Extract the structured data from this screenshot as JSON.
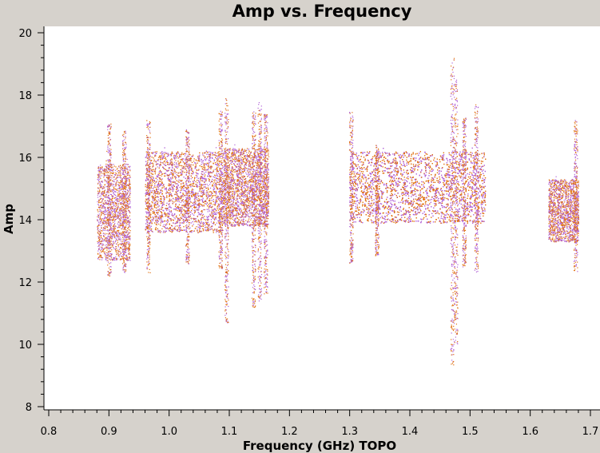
{
  "chart_data": {
    "type": "scatter",
    "title": "Amp vs. Frequency",
    "xlabel": "Frequency (GHz) TOPO",
    "ylabel": "Amp",
    "xlim": [
      0.8,
      1.7
    ],
    "ylim": [
      8,
      20
    ],
    "x_ticks": [
      "0.8",
      "0.9",
      "1.0",
      "1.1",
      "1.2",
      "1.3",
      "1.4",
      "1.5",
      "1.6",
      "1.7"
    ],
    "y_ticks": [
      "8",
      "10",
      "12",
      "14",
      "16",
      "18",
      "20"
    ],
    "grid": false,
    "colors": {
      "series_a": "#b061d6",
      "series_b": "#e07010"
    },
    "clusters": [
      {
        "x_range": [
          0.88,
          0.935
        ],
        "amp_range": [
          12.7,
          15.8
        ],
        "spikes": [
          {
            "x": 0.9,
            "min": 12.2,
            "max": 17.1
          },
          {
            "x": 0.925,
            "min": 12.3,
            "max": 16.9
          }
        ]
      },
      {
        "x_range": [
          0.96,
          1.09
        ],
        "amp_range": [
          13.6,
          16.2
        ],
        "spikes": [
          {
            "x": 0.965,
            "min": 12.3,
            "max": 17.2
          },
          {
            "x": 1.03,
            "min": 12.6,
            "max": 16.9
          },
          {
            "x": 1.085,
            "min": 12.4,
            "max": 17.5
          },
          {
            "x": 1.095,
            "min": 10.7,
            "max": 17.9
          }
        ]
      },
      {
        "x_range": [
          1.09,
          1.165
        ],
        "amp_range": [
          13.8,
          16.3
        ],
        "spikes": [
          {
            "x": 1.14,
            "min": 11.2,
            "max": 17.5
          },
          {
            "x": 1.15,
            "min": 11.4,
            "max": 17.8
          },
          {
            "x": 1.16,
            "min": 11.6,
            "max": 17.4
          }
        ]
      },
      {
        "x_range": [
          1.3,
          1.525
        ],
        "amp_range": [
          13.9,
          16.2
        ],
        "spikes": [
          {
            "x": 1.302,
            "min": 12.6,
            "max": 17.5
          },
          {
            "x": 1.345,
            "min": 12.8,
            "max": 16.4
          },
          {
            "x": 1.47,
            "min": 9.3,
            "max": 19.2
          },
          {
            "x": 1.476,
            "min": 10.0,
            "max": 18.5
          },
          {
            "x": 1.49,
            "min": 12.5,
            "max": 17.3
          },
          {
            "x": 1.51,
            "min": 12.3,
            "max": 17.7
          }
        ]
      },
      {
        "x_range": [
          1.63,
          1.68
        ],
        "amp_range": [
          13.3,
          15.3
        ],
        "spikes": [
          {
            "x": 1.675,
            "min": 12.3,
            "max": 17.2
          }
        ]
      }
    ]
  }
}
